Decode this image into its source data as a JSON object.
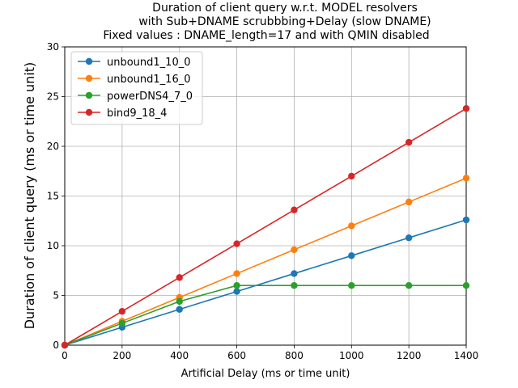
{
  "chart_data": {
    "type": "line",
    "title": [
      "Duration of client query w.r.t. MODEL resolvers",
      "with Sub+DNAME scrubbbing+Delay (slow DNAME)",
      "Fixed values : DNAME_length=17 and  with QMIN disabled"
    ],
    "xlabel": "Artificial Delay (ms or time unit)",
    "ylabel": "Duration of client query (ms or time unit)",
    "xlim": [
      0,
      1400
    ],
    "ylim": [
      0,
      30
    ],
    "xticks": [
      0,
      200,
      400,
      600,
      800,
      1000,
      1200,
      1400
    ],
    "yticks": [
      0,
      5,
      10,
      15,
      20,
      25,
      30
    ],
    "grid": true,
    "legend_position": "top-left",
    "x": [
      0,
      200,
      400,
      600,
      800,
      1000,
      1200,
      1400
    ],
    "series": [
      {
        "name": "unbound1_10_0",
        "color": "#1f77b4",
        "values": [
          0,
          1.8,
          3.6,
          5.4,
          7.2,
          9.0,
          10.8,
          12.6
        ]
      },
      {
        "name": "unbound1_16_0",
        "color": "#ff7f0e",
        "values": [
          0,
          2.4,
          4.8,
          7.2,
          9.6,
          12.0,
          14.4,
          16.8
        ]
      },
      {
        "name": "powerDNS4_7_0",
        "color": "#2ca02c",
        "values": [
          0,
          2.2,
          4.4,
          6.0,
          6.0,
          6.0,
          6.0,
          6.0
        ]
      },
      {
        "name": "bind9_18_4",
        "color": "#d62728",
        "values": [
          0,
          3.4,
          6.8,
          10.2,
          13.6,
          17.0,
          20.4,
          23.8
        ]
      }
    ]
  }
}
